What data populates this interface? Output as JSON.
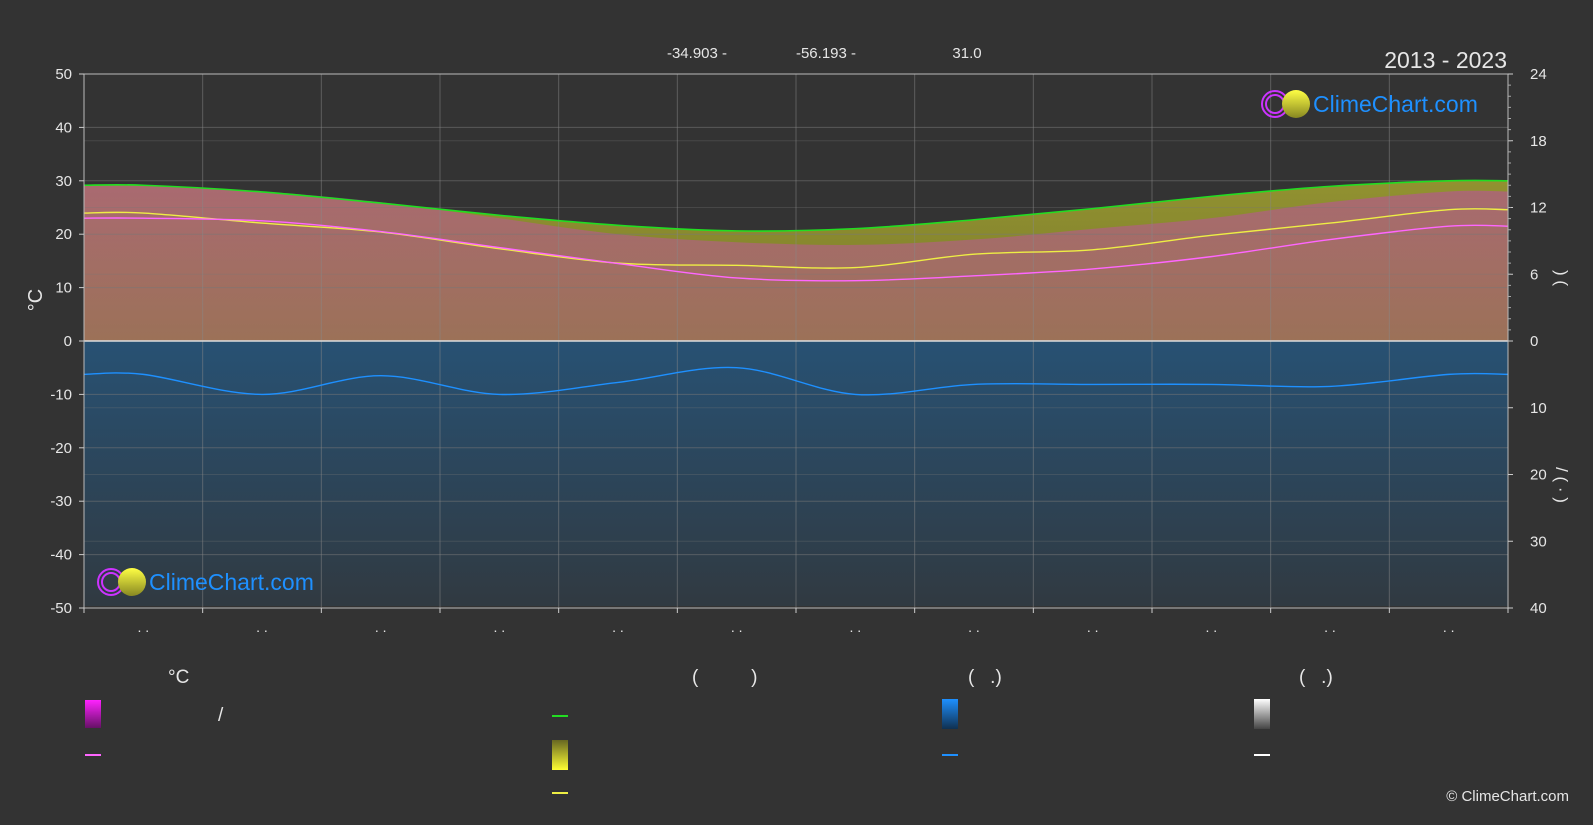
{
  "header": {
    "lat": "-34.903 -",
    "lon": "-56.193 -",
    "elev": "31.0",
    "years": "2013 - 2023"
  },
  "brand": {
    "name": "ClimeChart.com",
    "copyright": "© ClimeChart.com"
  },
  "chart_data": {
    "type": "area",
    "x_points": 12,
    "month_labels": [
      ". .",
      ". .",
      ". .",
      ". .",
      ". .",
      ". .",
      ". .",
      ". .",
      ". .",
      ". .",
      ". .",
      ". ."
    ],
    "ylabel_left": "°C",
    "ylabel_right_top": ")     (",
    "ylabel_right_bottom": "/ (  ·  )",
    "left_axis": {
      "ylim": [
        -50,
        50
      ],
      "ticks": [
        50,
        40,
        30,
        20,
        10,
        0,
        -10,
        -20,
        -30,
        -40,
        -50
      ]
    },
    "right_axis_top": {
      "ylim": [
        0,
        24
      ],
      "ticks": [
        24,
        18,
        12,
        6,
        0
      ]
    },
    "right_axis_bottom": {
      "ylim": [
        0,
        40
      ],
      "ticks": [
        10,
        20,
        30,
        40
      ]
    },
    "grid": true,
    "series": [
      {
        "key": "daylight",
        "color": "#22dd22",
        "values": [
          14.0,
          13.4,
          12.4,
          11.3,
          10.4,
          9.9,
          10.1,
          10.9,
          11.9,
          13.0,
          13.9,
          14.4
        ]
      },
      {
        "key": "sunshine",
        "color": "#eeee44",
        "values": [
          11.5,
          10.6,
          9.8,
          8.3,
          7.0,
          6.8,
          6.6,
          7.8,
          8.2,
          9.5,
          10.6,
          11.8
        ]
      },
      {
        "key": "temp_mean",
        "color": "#ff66ff",
        "values": [
          23.0,
          22.5,
          20.5,
          17.5,
          14.5,
          11.8,
          11.3,
          12.2,
          13.5,
          15.8,
          19.0,
          21.5
        ]
      },
      {
        "key": "precip",
        "color": "#1e90ff",
        "values": [
          5.0,
          8.0,
          5.2,
          8.0,
          6.2,
          4.0,
          8.0,
          6.5,
          6.5,
          6.5,
          6.8,
          5.0
        ]
      }
    ],
    "temp_max_band": [
      29.0,
      28.0,
      26.0,
      23.0,
      20.0,
      18.5,
      18.0,
      19.0,
      21.0,
      23.0,
      26.0,
      28.0
    ]
  },
  "legend": {
    "col1": {
      "title": "°C",
      "item1": "/",
      "item2": ""
    },
    "col2": {
      "title": "(          )",
      "item1": "",
      "item2": "",
      "item3": ""
    },
    "col3": {
      "title": "(   .)",
      "item1": "",
      "item2": ""
    },
    "col4": {
      "title": "(   .)",
      "item1": "",
      "item2": ""
    }
  },
  "colors": {
    "background": "#333333",
    "grid": "#5a5a5a",
    "axis": "#cccccc",
    "daylight": "#22dd22",
    "sunshine": "#eeee44",
    "temperature": "#ff66ff",
    "temp_band": "#dd22dd",
    "precip": "#1e90ff",
    "snow": "#ffffff",
    "brand_blue": "#1e90ff"
  }
}
